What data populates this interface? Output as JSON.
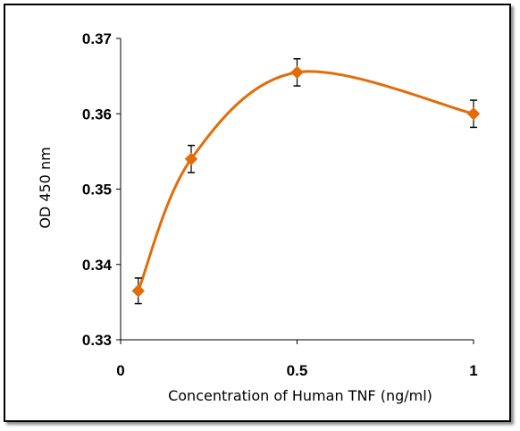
{
  "chart_data": {
    "type": "line",
    "title": "",
    "xlabel": "Concentration of Human TNF (ng/ml)",
    "ylabel": "OD 450 nm",
    "xlim": [
      0,
      1
    ],
    "ylim": [
      0.33,
      0.37
    ],
    "x_ticks": [
      0,
      0.5,
      1
    ],
    "x_tick_labels": [
      "0",
      "0.5",
      "1"
    ],
    "y_ticks": [
      0.33,
      0.34,
      0.35,
      0.36,
      0.37
    ],
    "y_tick_labels": [
      "0.33",
      "0.34",
      "0.35",
      "0.36",
      "0.37"
    ],
    "grid": false,
    "legend": "none",
    "smooth": true,
    "marker": "diamond",
    "series": [
      {
        "x": [
          0.05,
          0.2,
          0.5,
          1
        ],
        "y": [
          0.3365,
          0.354,
          0.3655,
          0.36
        ],
        "error": [
          0.0017,
          0.0018,
          0.0018,
          0.0018
        ],
        "color": "#E36C09"
      }
    ]
  }
}
